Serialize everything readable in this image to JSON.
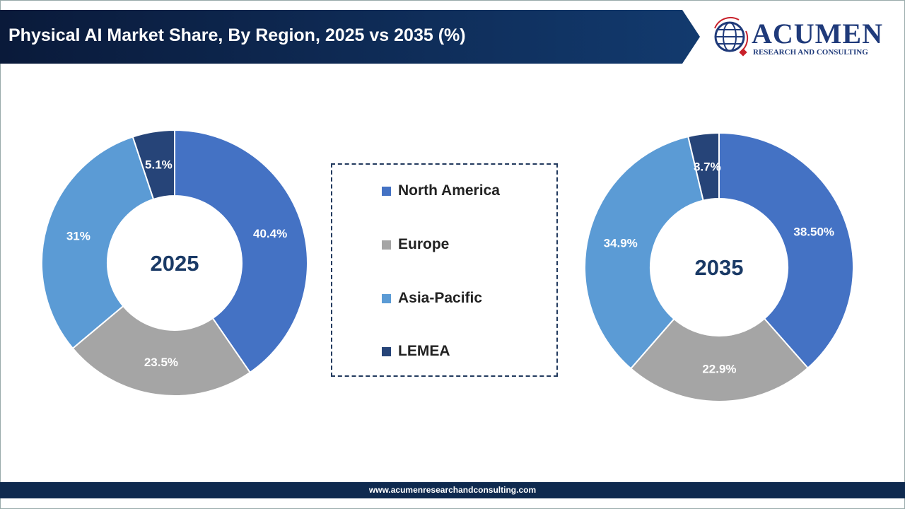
{
  "header": {
    "title": "Physical AI Market Share, By Region, 2025 vs 2035 (%)"
  },
  "logo": {
    "main": "ACUMEN",
    "sub": "RESEARCH AND CONSULTING"
  },
  "footer": {
    "url": "www.acumenresearchandconsulting.com"
  },
  "chart_data": [
    {
      "type": "pie",
      "donut": true,
      "center_label": "2025",
      "categories": [
        "North America",
        "Europe",
        "Asia-Pacific",
        "LEMEA"
      ],
      "values": [
        40.4,
        23.5,
        31,
        5.1
      ],
      "labels": [
        "40.4%",
        "23.5%",
        "31%",
        "5.1%"
      ],
      "colors": [
        "#4472C4",
        "#A5A5A5",
        "#5B9BD5",
        "#264478"
      ]
    },
    {
      "type": "pie",
      "donut": true,
      "center_label": "2035",
      "categories": [
        "North America",
        "Europe",
        "Asia-Pacific",
        "LEMEA"
      ],
      "values": [
        38.5,
        22.9,
        34.9,
        3.7
      ],
      "labels": [
        "38.50%",
        "22.9%",
        "34.9%",
        "3.7%"
      ],
      "colors": [
        "#4472C4",
        "#A5A5A5",
        "#5B9BD5",
        "#264478"
      ]
    }
  ],
  "legend": {
    "placement": "center",
    "items": [
      "North America",
      "Europe",
      "Asia-Pacific",
      "LEMEA"
    ]
  }
}
